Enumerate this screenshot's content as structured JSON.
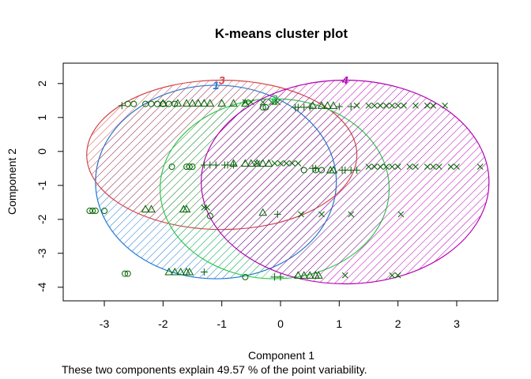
{
  "chart_data": {
    "type": "scatter",
    "title": "K-means cluster plot",
    "xlabel": "Component 1",
    "ylabel": "Component 2",
    "caption": "These two components explain 49.57 % of the point variability.",
    "xlim": [
      -3.7,
      3.7
    ],
    "ylim": [
      -4.4,
      2.6
    ],
    "xticks": [
      -3,
      -2,
      -1,
      0,
      1,
      2,
      3
    ],
    "yticks": [
      -4,
      -3,
      -2,
      -1,
      0,
      1,
      2
    ],
    "grid": false,
    "legend": "none",
    "point_color": "#006400",
    "clusters": [
      {
        "label": "1",
        "color": "#1E78D2",
        "center": [
          -1.1,
          -0.9
        ],
        "rx": 2.05,
        "ry": 2.85,
        "marker": "circle",
        "points": [
          [
            -2.6,
            1.4
          ],
          [
            -2.5,
            1.4
          ],
          [
            -2.3,
            1.4
          ],
          [
            -2.2,
            1.4
          ],
          [
            -2.1,
            1.4
          ],
          [
            -2.0,
            1.4
          ],
          [
            -1.9,
            1.4
          ],
          [
            -1.8,
            1.4
          ],
          [
            -1.85,
            -0.45
          ],
          [
            -1.6,
            -0.45
          ],
          [
            -1.55,
            -0.45
          ],
          [
            -1.5,
            -0.45
          ],
          [
            -3.25,
            -1.75
          ],
          [
            -3.2,
            -1.75
          ],
          [
            -3.15,
            -1.75
          ],
          [
            -3.0,
            -1.75
          ],
          [
            -2.65,
            -3.6
          ],
          [
            -2.6,
            -3.6
          ],
          [
            -1.2,
            -1.9
          ],
          [
            -0.6,
            -3.7
          ],
          [
            -0.3,
            1.3
          ],
          [
            -0.25,
            1.3
          ],
          [
            0.4,
            -0.55
          ],
          [
            0.6,
            -0.55
          ],
          [
            0.7,
            -0.55
          ]
        ]
      },
      {
        "label": "3",
        "color": "#D2464B",
        "center": [
          -1.0,
          -0.1
        ],
        "rx": 2.3,
        "ry": 2.2,
        "marker": "triangle",
        "points": [
          [
            -2.0,
            1.42
          ],
          [
            -1.75,
            1.42
          ],
          [
            -1.6,
            1.42
          ],
          [
            -1.5,
            1.42
          ],
          [
            -1.4,
            1.42
          ],
          [
            -1.3,
            1.42
          ],
          [
            -1.2,
            1.42
          ],
          [
            -1.0,
            1.42
          ],
          [
            -0.8,
            1.42
          ],
          [
            -0.6,
            1.42
          ],
          [
            -0.8,
            -0.35
          ],
          [
            -0.6,
            -0.35
          ],
          [
            -0.5,
            -0.35
          ],
          [
            -0.4,
            -0.35
          ],
          [
            -0.3,
            -0.35
          ],
          [
            -0.2,
            -0.35
          ],
          [
            -2.3,
            -1.7
          ],
          [
            -2.2,
            -1.7
          ],
          [
            -1.65,
            -1.7
          ],
          [
            -1.6,
            -1.7
          ],
          [
            -0.3,
            -1.8
          ],
          [
            -1.9,
            -3.55
          ],
          [
            -1.8,
            -3.55
          ],
          [
            -1.7,
            -3.55
          ],
          [
            -1.6,
            -3.55
          ],
          [
            -1.55,
            -3.55
          ],
          [
            0.3,
            -3.65
          ],
          [
            0.4,
            -3.65
          ],
          [
            0.5,
            -3.65
          ],
          [
            0.6,
            -3.65
          ],
          [
            0.65,
            -3.65
          ],
          [
            0.55,
            1.35
          ],
          [
            0.7,
            1.35
          ],
          [
            0.8,
            1.35
          ],
          [
            0.9,
            1.35
          ],
          [
            0.85,
            -0.55
          ],
          [
            0.9,
            -0.55
          ]
        ]
      },
      {
        "label": "2",
        "color": "#32C850",
        "center": [
          -0.1,
          -1.1
        ],
        "rx": 1.95,
        "ry": 2.65,
        "marker": "plus",
        "points": [
          [
            -2.7,
            1.35
          ],
          [
            -1.3,
            -0.4
          ],
          [
            -1.2,
            -0.4
          ],
          [
            -1.1,
            -0.4
          ],
          [
            -0.95,
            -0.4
          ],
          [
            -0.9,
            -0.4
          ],
          [
            -0.8,
            -0.4
          ],
          [
            -1.3,
            -3.55
          ],
          [
            -0.05,
            -1.85
          ],
          [
            -0.1,
            -3.7
          ],
          [
            0.0,
            -3.7
          ],
          [
            0.25,
            1.3
          ],
          [
            0.3,
            1.3
          ],
          [
            0.4,
            1.3
          ],
          [
            0.5,
            1.3
          ],
          [
            0.55,
            -0.5
          ],
          [
            0.6,
            -0.5
          ],
          [
            1.05,
            -0.55
          ],
          [
            1.1,
            -0.55
          ],
          [
            1.2,
            -0.55
          ],
          [
            1.3,
            -0.55
          ],
          [
            1.2,
            1.32
          ],
          [
            1.0,
            1.32
          ]
        ]
      },
      {
        "label": "4",
        "color": "#B400B4",
        "center": [
          1.1,
          -0.9
        ],
        "rx": 2.45,
        "ry": 3.0,
        "marker": "cross",
        "points": [
          [
            -0.6,
            1.45
          ],
          [
            -0.5,
            1.45
          ],
          [
            -0.3,
            1.45
          ],
          [
            -0.15,
            1.45
          ],
          [
            -0.1,
            1.45
          ],
          [
            -0.05,
            1.45
          ],
          [
            -0.4,
            -0.35
          ],
          [
            -0.1,
            -0.35
          ],
          [
            0.0,
            -0.35
          ],
          [
            0.1,
            -0.35
          ],
          [
            0.2,
            -0.35
          ],
          [
            0.3,
            -0.35
          ],
          [
            -1.3,
            -1.65
          ],
          [
            -1.25,
            -1.65
          ],
          [
            0.35,
            -1.85
          ],
          [
            0.7,
            -1.85
          ],
          [
            1.2,
            -1.85
          ],
          [
            2.05,
            -1.85
          ],
          [
            1.1,
            -3.65
          ],
          [
            1.9,
            -3.65
          ],
          [
            2.0,
            -3.65
          ],
          [
            1.3,
            1.35
          ],
          [
            1.5,
            1.35
          ],
          [
            1.6,
            1.35
          ],
          [
            1.7,
            1.35
          ],
          [
            1.8,
            1.35
          ],
          [
            1.9,
            1.35
          ],
          [
            2.0,
            1.35
          ],
          [
            2.1,
            1.35
          ],
          [
            2.3,
            1.35
          ],
          [
            2.5,
            1.35
          ],
          [
            2.6,
            1.35
          ],
          [
            2.8,
            1.35
          ],
          [
            1.5,
            -0.45
          ],
          [
            1.6,
            -0.45
          ],
          [
            1.7,
            -0.45
          ],
          [
            1.8,
            -0.45
          ],
          [
            1.9,
            -0.45
          ],
          [
            2.0,
            -0.45
          ],
          [
            2.2,
            -0.45
          ],
          [
            2.3,
            -0.45
          ],
          [
            2.5,
            -0.45
          ],
          [
            2.6,
            -0.45
          ],
          [
            2.7,
            -0.45
          ],
          [
            2.9,
            -0.45
          ],
          [
            3.0,
            -0.45
          ],
          [
            3.4,
            -0.45
          ]
        ]
      }
    ]
  }
}
